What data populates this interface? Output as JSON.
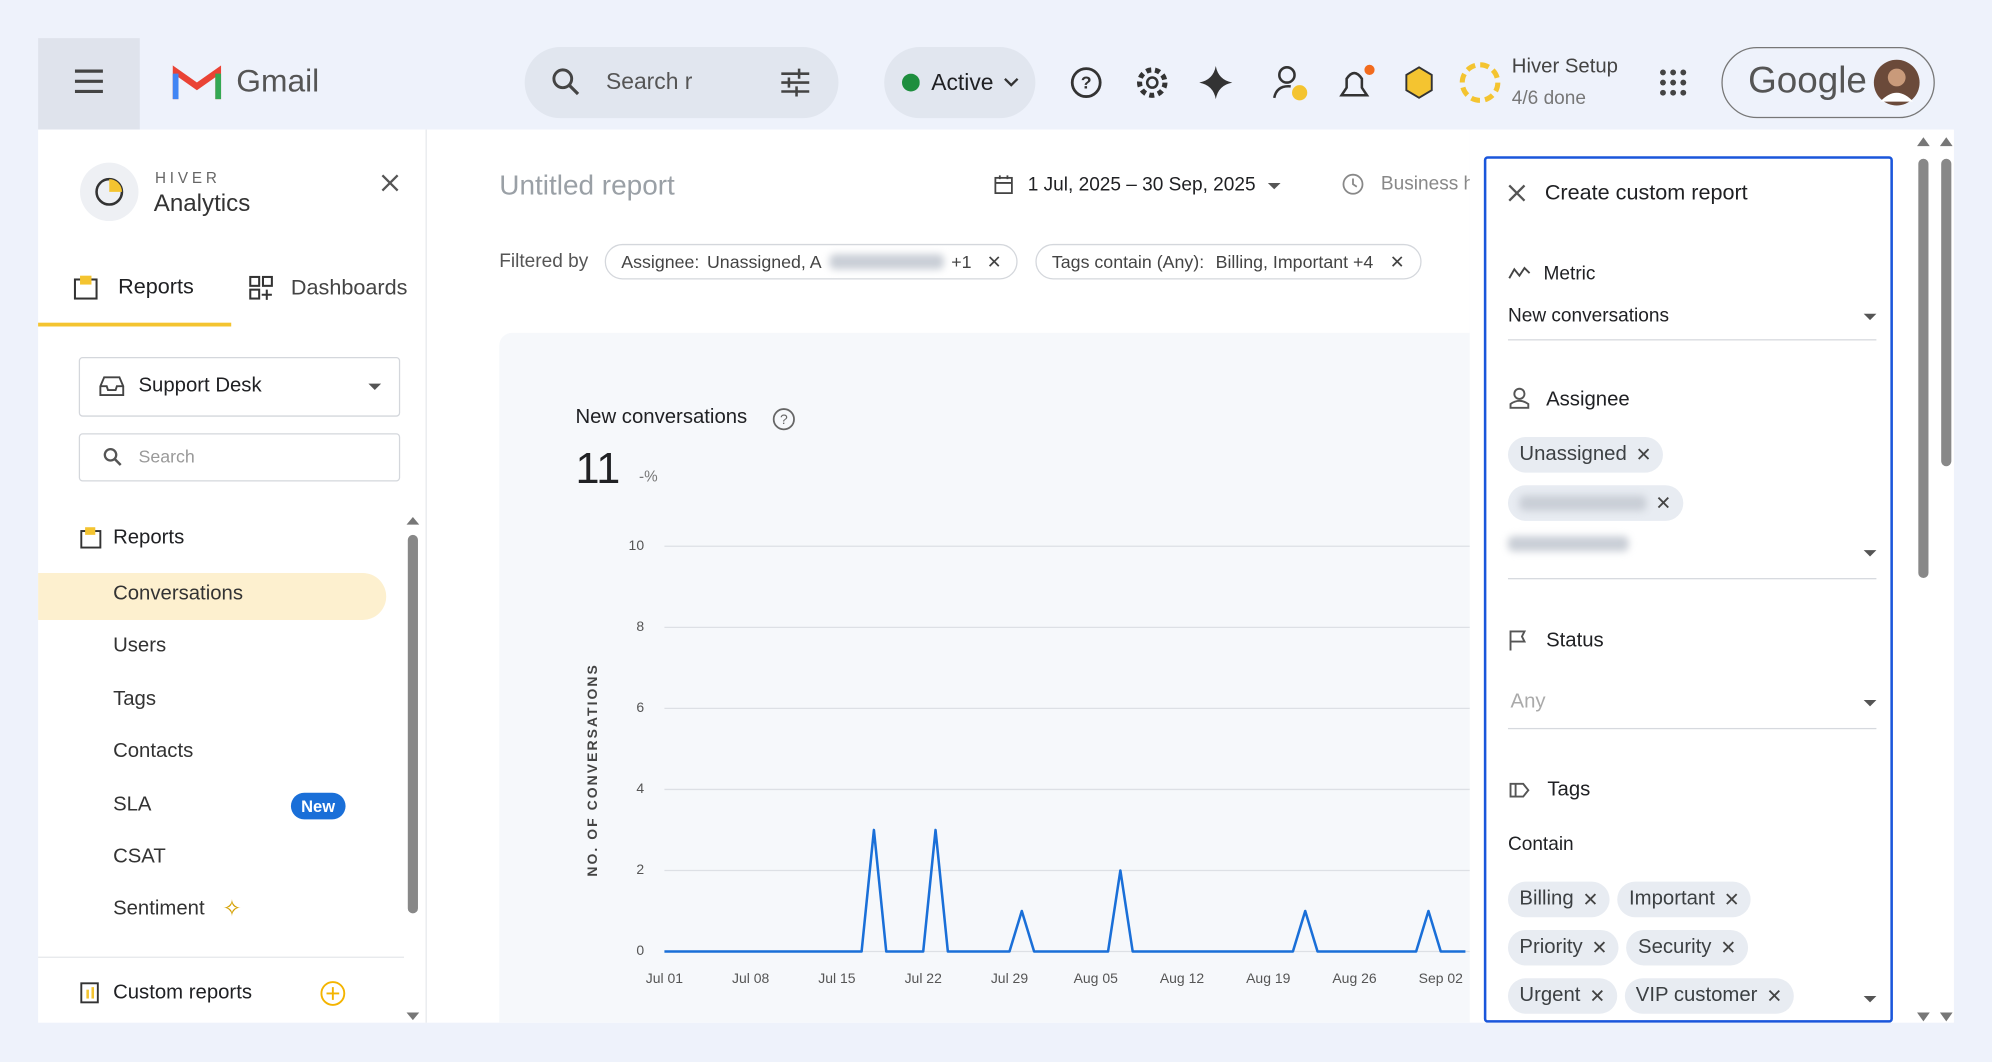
{
  "header": {
    "app": "Gmail",
    "search_placeholder": "Search r",
    "status": "Active",
    "hiver_setup": "Hiver Setup",
    "hiver_progress": "4/6 done",
    "account": "Google"
  },
  "sidebar": {
    "brand": "HIVER",
    "product": "Analytics",
    "tabs": [
      "Reports",
      "Dashboards"
    ],
    "inbox": "Support Desk",
    "search_placeholder": "Search",
    "section": "Reports",
    "items": [
      "Conversations",
      "Users",
      "Tags",
      "Contacts",
      "SLA",
      "CSAT",
      "Sentiment"
    ],
    "new_badge": "New",
    "custom_reports": "Custom reports"
  },
  "report": {
    "title": "Untitled report",
    "date_range": "1 Jul, 2025 – 30 Sep, 2025",
    "business_hours": "Business h",
    "filtered_by": "Filtered by",
    "filters": [
      {
        "key": "Assignee:",
        "value": "Unassigned, A",
        "more": "+1"
      },
      {
        "key": "Tags contain (Any):",
        "value": "Billing, Important +4"
      }
    ]
  },
  "chart": {
    "type": "line",
    "title": "New conversations",
    "total": 11,
    "change": "-%",
    "y_label": "NO. OF CONVERSATIONS",
    "color": "#1a6fd8",
    "categories": [
      "Jul 01",
      null,
      null,
      null,
      null,
      null,
      null,
      "Jul 08",
      null,
      null,
      null,
      null,
      null,
      null,
      "Jul 15",
      null,
      null,
      null,
      null,
      null,
      null,
      "Jul 22",
      null,
      null,
      null,
      null,
      null,
      null,
      "Jul 29",
      null,
      null,
      null,
      null,
      null,
      null,
      "Aug 05",
      null,
      null,
      null,
      null,
      null,
      null,
      "Aug 12",
      null,
      null,
      null,
      null,
      null,
      null,
      "Aug 19",
      null,
      null,
      null,
      null,
      null,
      null,
      "Aug 26",
      null,
      null,
      null,
      null,
      null,
      null,
      "Sep 02",
      null,
      null
    ],
    "values": [
      0,
      0,
      0,
      0,
      0,
      0,
      0,
      0,
      0,
      0,
      0,
      0,
      0,
      0,
      0,
      0,
      0,
      3,
      0,
      0,
      0,
      0,
      3,
      0,
      0,
      0,
      0,
      0,
      0,
      1,
      0,
      0,
      0,
      0,
      0,
      0,
      0,
      2,
      0,
      0,
      0,
      0,
      0,
      0,
      0,
      0,
      0,
      0,
      0,
      0,
      0,
      0,
      1,
      0,
      0,
      0,
      0,
      0,
      0,
      0,
      0,
      0,
      1,
      0,
      0,
      0
    ],
    "ylim": [
      0,
      10
    ],
    "yticks": [
      0,
      2,
      4,
      6,
      8,
      10
    ],
    "grid": true
  },
  "panel": {
    "title": "Create custom report",
    "metric_label": "Metric",
    "metric": "New conversations",
    "assignee_label": "Assignee",
    "assignees": [
      "Unassigned"
    ],
    "status_label": "Status",
    "status_placeholder": "Any",
    "tags_label": "Tags",
    "tags_mode": "Contain",
    "tags": [
      "Billing",
      "Important",
      "Priority",
      "Security",
      "Urgent",
      "VIP customer"
    ]
  }
}
